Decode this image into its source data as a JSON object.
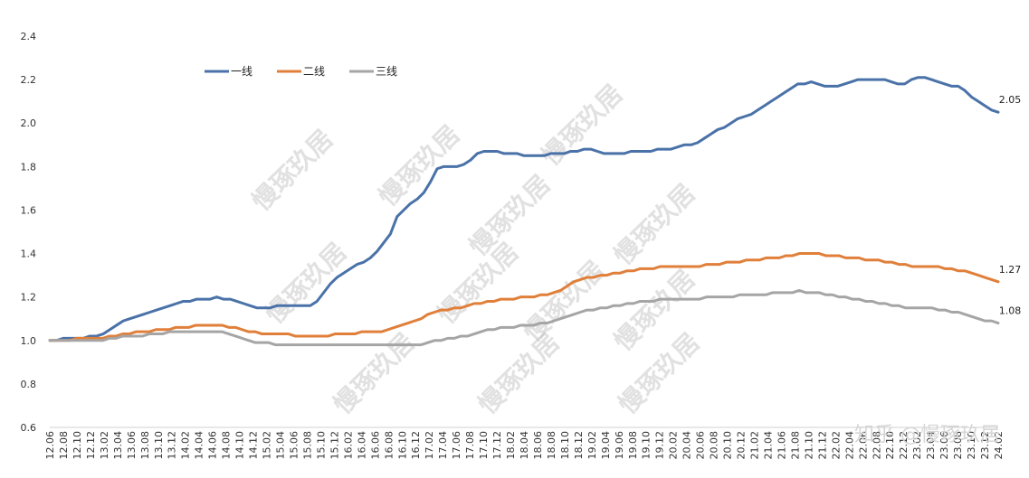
{
  "chart_data": {
    "type": "line",
    "title": "",
    "xlabel": "",
    "ylabel": "",
    "ylim": [
      0.6,
      2.4
    ],
    "yticks": [
      0.6,
      0.8,
      1.0,
      1.2,
      1.4,
      1.6,
      1.8,
      2.0,
      2.2,
      2.4
    ],
    "grid": false,
    "legend_position": "top-left",
    "x_tick_labels": [
      "12.06",
      "12.08",
      "12.10",
      "12.12",
      "13.02",
      "13.04",
      "13.06",
      "13.08",
      "13.10",
      "13.12",
      "14.02",
      "14.04",
      "14.06",
      "14.08",
      "14.10",
      "14.12",
      "15.02",
      "15.04",
      "15.06",
      "15.08",
      "15.10",
      "15.12",
      "16.02",
      "16.04",
      "16.06",
      "16.08",
      "16.10",
      "16.12",
      "17.02",
      "17.04",
      "17.06",
      "17.08",
      "17.10",
      "17.12",
      "18.02",
      "18.04",
      "18.06",
      "18.08",
      "18.10",
      "18.12",
      "19.02",
      "19.04",
      "19.06",
      "19.08",
      "19.10",
      "19.12",
      "20.02",
      "20.04",
      "20.06",
      "20.08",
      "20.10",
      "20.12",
      "21.02",
      "21.04",
      "21.06",
      "21.08",
      "21.10",
      "21.12",
      "22.02",
      "22.04",
      "22.06",
      "22.08",
      "22.10",
      "22.12",
      "23.02",
      "23.04",
      "23.06",
      "23.08",
      "23.10",
      "23.12",
      "24.02"
    ],
    "x_start_index_month": "12.06",
    "series": [
      {
        "name": "一线",
        "color": "#4a72a8",
        "end_label": "2.05",
        "values": [
          1.0,
          1.0,
          1.01,
          1.01,
          1.01,
          1.01,
          1.02,
          1.02,
          1.03,
          1.05,
          1.07,
          1.09,
          1.1,
          1.11,
          1.12,
          1.13,
          1.14,
          1.15,
          1.16,
          1.17,
          1.18,
          1.18,
          1.19,
          1.19,
          1.19,
          1.2,
          1.19,
          1.19,
          1.18,
          1.17,
          1.16,
          1.15,
          1.15,
          1.15,
          1.16,
          1.16,
          1.16,
          1.16,
          1.16,
          1.16,
          1.18,
          1.22,
          1.26,
          1.29,
          1.31,
          1.33,
          1.35,
          1.36,
          1.38,
          1.41,
          1.45,
          1.49,
          1.57,
          1.6,
          1.63,
          1.65,
          1.68,
          1.73,
          1.79,
          1.8,
          1.8,
          1.8,
          1.81,
          1.83,
          1.86,
          1.87,
          1.87,
          1.87,
          1.86,
          1.86,
          1.86,
          1.85,
          1.85,
          1.85,
          1.85,
          1.86,
          1.86,
          1.86,
          1.87,
          1.87,
          1.88,
          1.88,
          1.87,
          1.86,
          1.86,
          1.86,
          1.86,
          1.87,
          1.87,
          1.87,
          1.87,
          1.88,
          1.88,
          1.88,
          1.89,
          1.9,
          1.9,
          1.91,
          1.93,
          1.95,
          1.97,
          1.98,
          2.0,
          2.02,
          2.03,
          2.04,
          2.06,
          2.08,
          2.1,
          2.12,
          2.14,
          2.16,
          2.18,
          2.18,
          2.19,
          2.18,
          2.17,
          2.17,
          2.17,
          2.18,
          2.19,
          2.2,
          2.2,
          2.2,
          2.2,
          2.2,
          2.19,
          2.18,
          2.18,
          2.2,
          2.21,
          2.21,
          2.2,
          2.19,
          2.18,
          2.17,
          2.17,
          2.15,
          2.12,
          2.1,
          2.08,
          2.06,
          2.05
        ]
      },
      {
        "name": "二线",
        "color": "#e07f3a",
        "end_label": "1.27",
        "values": [
          1.0,
          1.0,
          1.0,
          1.0,
          1.01,
          1.01,
          1.01,
          1.01,
          1.01,
          1.02,
          1.02,
          1.03,
          1.03,
          1.04,
          1.04,
          1.04,
          1.05,
          1.05,
          1.05,
          1.06,
          1.06,
          1.06,
          1.07,
          1.07,
          1.07,
          1.07,
          1.07,
          1.06,
          1.06,
          1.05,
          1.04,
          1.04,
          1.03,
          1.03,
          1.03,
          1.03,
          1.03,
          1.02,
          1.02,
          1.02,
          1.02,
          1.02,
          1.02,
          1.03,
          1.03,
          1.03,
          1.03,
          1.04,
          1.04,
          1.04,
          1.04,
          1.05,
          1.06,
          1.07,
          1.08,
          1.09,
          1.1,
          1.12,
          1.13,
          1.14,
          1.14,
          1.15,
          1.15,
          1.16,
          1.17,
          1.17,
          1.18,
          1.18,
          1.19,
          1.19,
          1.19,
          1.2,
          1.2,
          1.2,
          1.21,
          1.21,
          1.22,
          1.23,
          1.25,
          1.27,
          1.28,
          1.29,
          1.29,
          1.3,
          1.3,
          1.31,
          1.31,
          1.32,
          1.32,
          1.33,
          1.33,
          1.33,
          1.34,
          1.34,
          1.34,
          1.34,
          1.34,
          1.34,
          1.34,
          1.35,
          1.35,
          1.35,
          1.36,
          1.36,
          1.36,
          1.37,
          1.37,
          1.37,
          1.38,
          1.38,
          1.38,
          1.39,
          1.39,
          1.4,
          1.4,
          1.4,
          1.4,
          1.39,
          1.39,
          1.39,
          1.38,
          1.38,
          1.38,
          1.37,
          1.37,
          1.37,
          1.36,
          1.36,
          1.35,
          1.35,
          1.34,
          1.34,
          1.34,
          1.34,
          1.34,
          1.33,
          1.33,
          1.32,
          1.32,
          1.31,
          1.3,
          1.29,
          1.28,
          1.27
        ]
      },
      {
        "name": "三线",
        "color": "#a5a5a5",
        "end_label": "1.08",
        "values": [
          1.0,
          1.0,
          1.0,
          1.0,
          1.0,
          1.0,
          1.0,
          1.0,
          1.0,
          1.01,
          1.01,
          1.02,
          1.02,
          1.02,
          1.02,
          1.03,
          1.03,
          1.03,
          1.04,
          1.04,
          1.04,
          1.04,
          1.04,
          1.04,
          1.04,
          1.04,
          1.04,
          1.03,
          1.02,
          1.01,
          1.0,
          0.99,
          0.99,
          0.99,
          0.98,
          0.98,
          0.98,
          0.98,
          0.98,
          0.98,
          0.98,
          0.98,
          0.98,
          0.98,
          0.98,
          0.98,
          0.98,
          0.98,
          0.98,
          0.98,
          0.98,
          0.98,
          0.98,
          0.98,
          0.98,
          0.98,
          0.98,
          0.99,
          1.0,
          1.0,
          1.01,
          1.01,
          1.02,
          1.02,
          1.03,
          1.04,
          1.05,
          1.05,
          1.06,
          1.06,
          1.06,
          1.07,
          1.07,
          1.07,
          1.08,
          1.08,
          1.09,
          1.1,
          1.11,
          1.12,
          1.13,
          1.14,
          1.14,
          1.15,
          1.15,
          1.16,
          1.16,
          1.17,
          1.17,
          1.18,
          1.18,
          1.18,
          1.19,
          1.19,
          1.19,
          1.19,
          1.19,
          1.19,
          1.19,
          1.2,
          1.2,
          1.2,
          1.2,
          1.2,
          1.21,
          1.21,
          1.21,
          1.21,
          1.21,
          1.22,
          1.22,
          1.22,
          1.22,
          1.23,
          1.22,
          1.22,
          1.22,
          1.21,
          1.21,
          1.2,
          1.2,
          1.19,
          1.19,
          1.18,
          1.18,
          1.17,
          1.17,
          1.16,
          1.16,
          1.15,
          1.15,
          1.15,
          1.15,
          1.15,
          1.14,
          1.14,
          1.13,
          1.13,
          1.12,
          1.11,
          1.1,
          1.09,
          1.09,
          1.08
        ]
      }
    ]
  },
  "watermark": {
    "text": "慢琢玖居",
    "corner_text": "知乎 @慢琢玖居"
  }
}
